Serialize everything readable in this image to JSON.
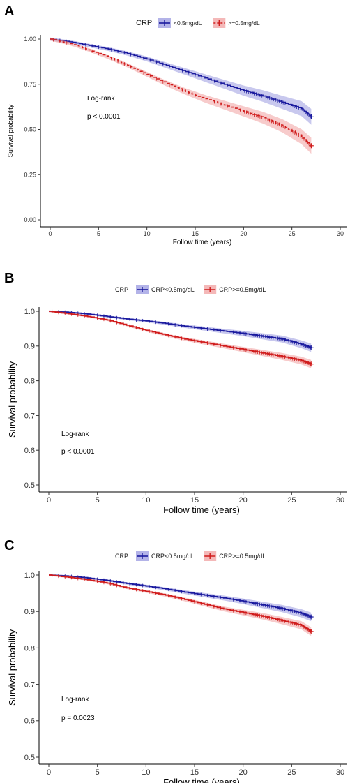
{
  "colors": {
    "low": "#1a1a9e",
    "high": "#d01c1c",
    "low_band": "#9a9ae0",
    "high_band": "#f0a0a0"
  },
  "chart_data": [
    {
      "type": "line",
      "panel_label": "A",
      "legend_title": "CRP",
      "xlabel": "Follow time (years)",
      "ylabel": "Survival probability",
      "xlim": [
        0,
        30
      ],
      "ylim": [
        0,
        1
      ],
      "xticks": [
        "0",
        "5",
        "10",
        "15",
        "20",
        "25",
        "30"
      ],
      "yticks": [
        "0.00",
        "0.25",
        "0.50",
        "0.75",
        "1.00"
      ],
      "annotation": [
        "Log-rank",
        "p < 0.0001"
      ],
      "series": [
        {
          "name": "<0.5mg/dL",
          "key": "low",
          "x": [
            0,
            2,
            4,
            6,
            8,
            10,
            12,
            14,
            16,
            18,
            20,
            22,
            24,
            26,
            27
          ],
          "y": [
            1.0,
            0.985,
            0.965,
            0.945,
            0.92,
            0.89,
            0.855,
            0.82,
            0.785,
            0.75,
            0.715,
            0.685,
            0.65,
            0.615,
            0.57
          ]
        },
        {
          "name": ">=0.5mg/dL",
          "key": "high",
          "x": [
            0,
            2,
            4,
            6,
            8,
            10,
            12,
            14,
            16,
            18,
            20,
            22,
            24,
            26,
            27
          ],
          "y": [
            1.0,
            0.975,
            0.94,
            0.9,
            0.855,
            0.805,
            0.755,
            0.71,
            0.67,
            0.635,
            0.6,
            0.565,
            0.52,
            0.46,
            0.41
          ]
        }
      ]
    },
    {
      "type": "line",
      "panel_label": "B",
      "legend_title": "CRP",
      "xlabel": "Follow time (years)",
      "ylabel": "Survival probability",
      "xlim": [
        0,
        30
      ],
      "ylim": [
        0.5,
        1.0
      ],
      "xticks": [
        "0",
        "5",
        "10",
        "15",
        "20",
        "25",
        "30"
      ],
      "yticks": [
        "0.5",
        "0.6",
        "0.7",
        "0.8",
        "0.9",
        "1.0"
      ],
      "annotation": [
        "Log-rank",
        "p < 0.0001"
      ],
      "series": [
        {
          "name": "CRP<0.5mg/dL",
          "key": "low",
          "x": [
            0,
            2,
            4,
            6,
            8,
            10,
            12,
            14,
            16,
            18,
            20,
            22,
            24,
            26,
            27
          ],
          "y": [
            1.0,
            0.997,
            0.992,
            0.985,
            0.978,
            0.972,
            0.965,
            0.957,
            0.95,
            0.943,
            0.936,
            0.928,
            0.92,
            0.905,
            0.895
          ]
        },
        {
          "name": "CRP>=0.5mg/dL",
          "key": "high",
          "x": [
            0,
            2,
            4,
            6,
            8,
            10,
            12,
            14,
            16,
            18,
            20,
            22,
            24,
            26,
            27
          ],
          "y": [
            1.0,
            0.993,
            0.985,
            0.975,
            0.96,
            0.945,
            0.932,
            0.92,
            0.91,
            0.9,
            0.89,
            0.88,
            0.87,
            0.858,
            0.848
          ]
        }
      ]
    },
    {
      "type": "line",
      "panel_label": "C",
      "legend_title": "CRP",
      "xlabel": "Follow time (years)",
      "ylabel": "Survival probability",
      "xlim": [
        0,
        30
      ],
      "ylim": [
        0.5,
        1.0
      ],
      "xticks": [
        "0",
        "5",
        "10",
        "15",
        "20",
        "25",
        "30"
      ],
      "yticks": [
        "0.5",
        "0.6",
        "0.7",
        "0.8",
        "0.9",
        "1.0"
      ],
      "annotation": [
        "Log-rank",
        "p = 0.0023"
      ],
      "series": [
        {
          "name": "CRP<0.5mg/dL",
          "key": "low",
          "x": [
            0,
            2,
            4,
            6,
            8,
            10,
            12,
            14,
            16,
            18,
            20,
            22,
            24,
            26,
            27
          ],
          "y": [
            1.0,
            0.997,
            0.992,
            0.985,
            0.977,
            0.97,
            0.962,
            0.953,
            0.945,
            0.937,
            0.928,
            0.918,
            0.908,
            0.895,
            0.885
          ]
        },
        {
          "name": "CRP>=0.5mg/dL",
          "key": "high",
          "x": [
            0,
            2,
            4,
            6,
            8,
            10,
            12,
            14,
            16,
            18,
            20,
            22,
            24,
            26,
            27
          ],
          "y": [
            1.0,
            0.994,
            0.987,
            0.978,
            0.965,
            0.955,
            0.945,
            0.933,
            0.92,
            0.907,
            0.897,
            0.887,
            0.875,
            0.862,
            0.845
          ]
        }
      ]
    }
  ]
}
